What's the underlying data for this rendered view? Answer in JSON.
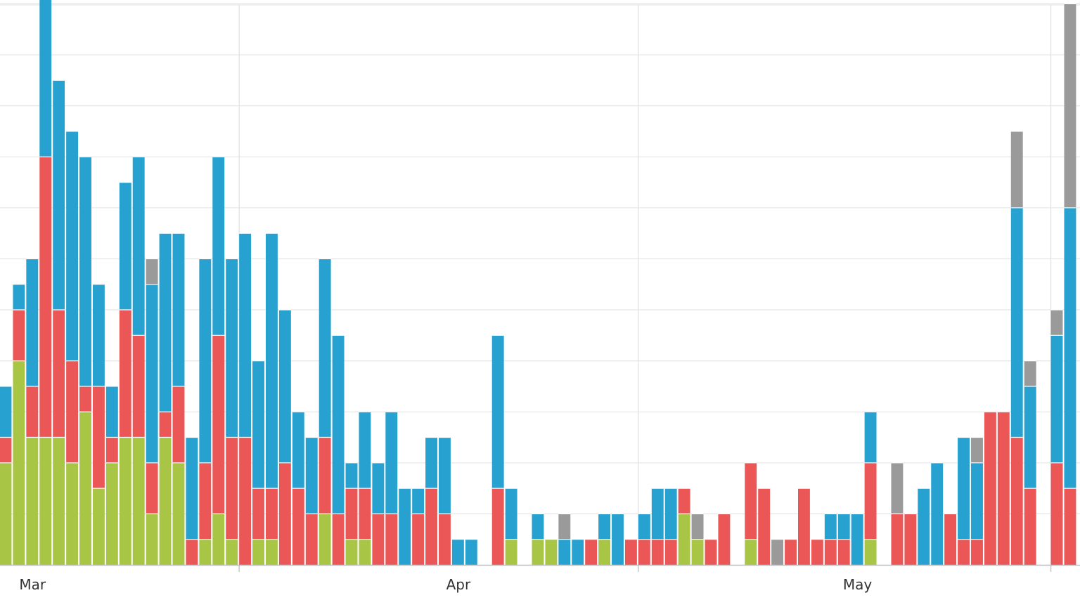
{
  "chart_data": {
    "type": "bar",
    "stacked": true,
    "title": "",
    "xlabel": "",
    "ylabel": "",
    "grid": true,
    "legend": "none",
    "y_axis_labels_shown": false,
    "ylim": [
      0,
      22
    ],
    "x_tick_labels": [
      "Mar",
      "Apr",
      "May"
    ],
    "x_tick_positions": [
      1.5,
      17.5,
      32.5
    ],
    "colors": {
      "green": "#a8c545",
      "red": "#eb5757",
      "blue": "#27a2d0",
      "gray": "#9a9a9a"
    },
    "series_order": [
      "green",
      "red",
      "blue",
      "gray"
    ],
    "x": [
      0.0,
      0.5,
      1.0,
      1.5,
      2.0,
      2.5,
      3.0,
      3.5,
      4.0,
      4.5,
      5.0,
      5.5,
      6.0,
      6.5,
      7.0,
      7.5,
      8.0,
      8.5,
      9.0,
      9.5,
      10.0,
      10.5,
      11.0,
      11.5,
      12.0,
      12.5,
      13.0,
      13.5,
      14.0,
      14.5,
      15.0,
      15.5,
      16.0,
      16.5,
      17.0,
      17.5,
      18.5,
      19.0,
      19.5,
      20.0,
      20.5,
      21.0,
      21.5,
      22.0,
      22.5,
      23.0,
      23.5,
      24.0,
      24.5,
      25.0,
      25.5,
      26.0,
      26.5,
      27.0,
      27.5,
      28.0,
      28.5,
      29.0,
      29.5,
      30.0,
      30.5,
      31.0,
      31.5,
      32.0,
      32.5,
      33.0,
      33.5,
      34.0,
      34.5,
      35.0,
      35.5,
      36.0,
      36.5,
      37.0,
      37.5,
      38.0,
      38.5,
      39.0,
      39.5,
      40.0,
      40.5
    ],
    "values": {
      "green": [
        4,
        8,
        5,
        5,
        5,
        4,
        6,
        3,
        4,
        5,
        5,
        2,
        5,
        4,
        0,
        1,
        2,
        1,
        0,
        1,
        1,
        0,
        0,
        0,
        2,
        0,
        1,
        1,
        0,
        0,
        0,
        0,
        0,
        0,
        0,
        0,
        0,
        1,
        0,
        1,
        1,
        0,
        0,
        0,
        1,
        0,
        0,
        0,
        0,
        0,
        2,
        1,
        0,
        0,
        0,
        1,
        0,
        0,
        0,
        0,
        0,
        0,
        0,
        0,
        1,
        0,
        0,
        0,
        0,
        0,
        0,
        0,
        0,
        0,
        0,
        0,
        0,
        0,
        0,
        0,
        0
      ],
      "red": [
        1,
        2,
        2,
        11,
        5,
        4,
        1,
        4,
        1,
        5,
        4,
        2,
        1,
        3,
        1,
        3,
        7,
        4,
        5,
        2,
        2,
        4,
        3,
        2,
        3,
        2,
        2,
        2,
        2,
        2,
        0,
        2,
        3,
        2,
        0,
        0,
        3,
        0,
        0,
        0,
        0,
        0,
        0,
        1,
        0,
        0,
        1,
        1,
        1,
        1,
        1,
        0,
        1,
        2,
        0,
        3,
        3,
        0,
        1,
        3,
        1,
        1,
        1,
        0,
        3,
        0,
        2,
        2,
        0,
        0,
        2,
        1,
        1,
        6,
        6,
        5,
        3,
        0,
        4,
        3,
        0
      ],
      "blue": [
        2,
        1,
        5,
        7,
        9,
        9,
        9,
        4,
        2,
        5,
        7,
        7,
        7,
        6,
        4,
        8,
        7,
        7,
        8,
        5,
        10,
        6,
        3,
        3,
        7,
        7,
        1,
        3,
        2,
        4,
        3,
        1,
        2,
        3,
        1,
        1,
        6,
        2,
        0,
        1,
        0,
        1,
        1,
        0,
        1,
        2,
        0,
        1,
        2,
        2,
        0,
        0,
        0,
        0,
        0,
        0,
        0,
        0,
        0,
        0,
        0,
        1,
        1,
        2,
        2,
        0,
        0,
        0,
        3,
        4,
        0,
        4,
        3,
        0,
        0,
        9,
        4,
        0,
        5,
        11,
        0
      ],
      "gray": [
        0,
        0,
        0,
        0,
        0,
        0,
        0,
        0,
        0,
        0,
        0,
        1,
        0,
        0,
        0,
        0,
        0,
        0,
        0,
        0,
        0,
        0,
        0,
        0,
        0,
        0,
        0,
        0,
        0,
        0,
        0,
        0,
        0,
        0,
        0,
        0,
        0,
        0,
        0,
        0,
        0,
        1,
        0,
        0,
        0,
        0,
        0,
        0,
        0,
        0,
        0,
        1,
        0,
        0,
        0,
        0,
        0,
        1,
        0,
        0,
        0,
        0,
        0,
        0,
        0,
        0,
        2,
        0,
        0,
        0,
        0,
        0,
        1,
        0,
        0,
        3,
        1,
        0,
        1,
        8,
        0
      ]
    }
  }
}
